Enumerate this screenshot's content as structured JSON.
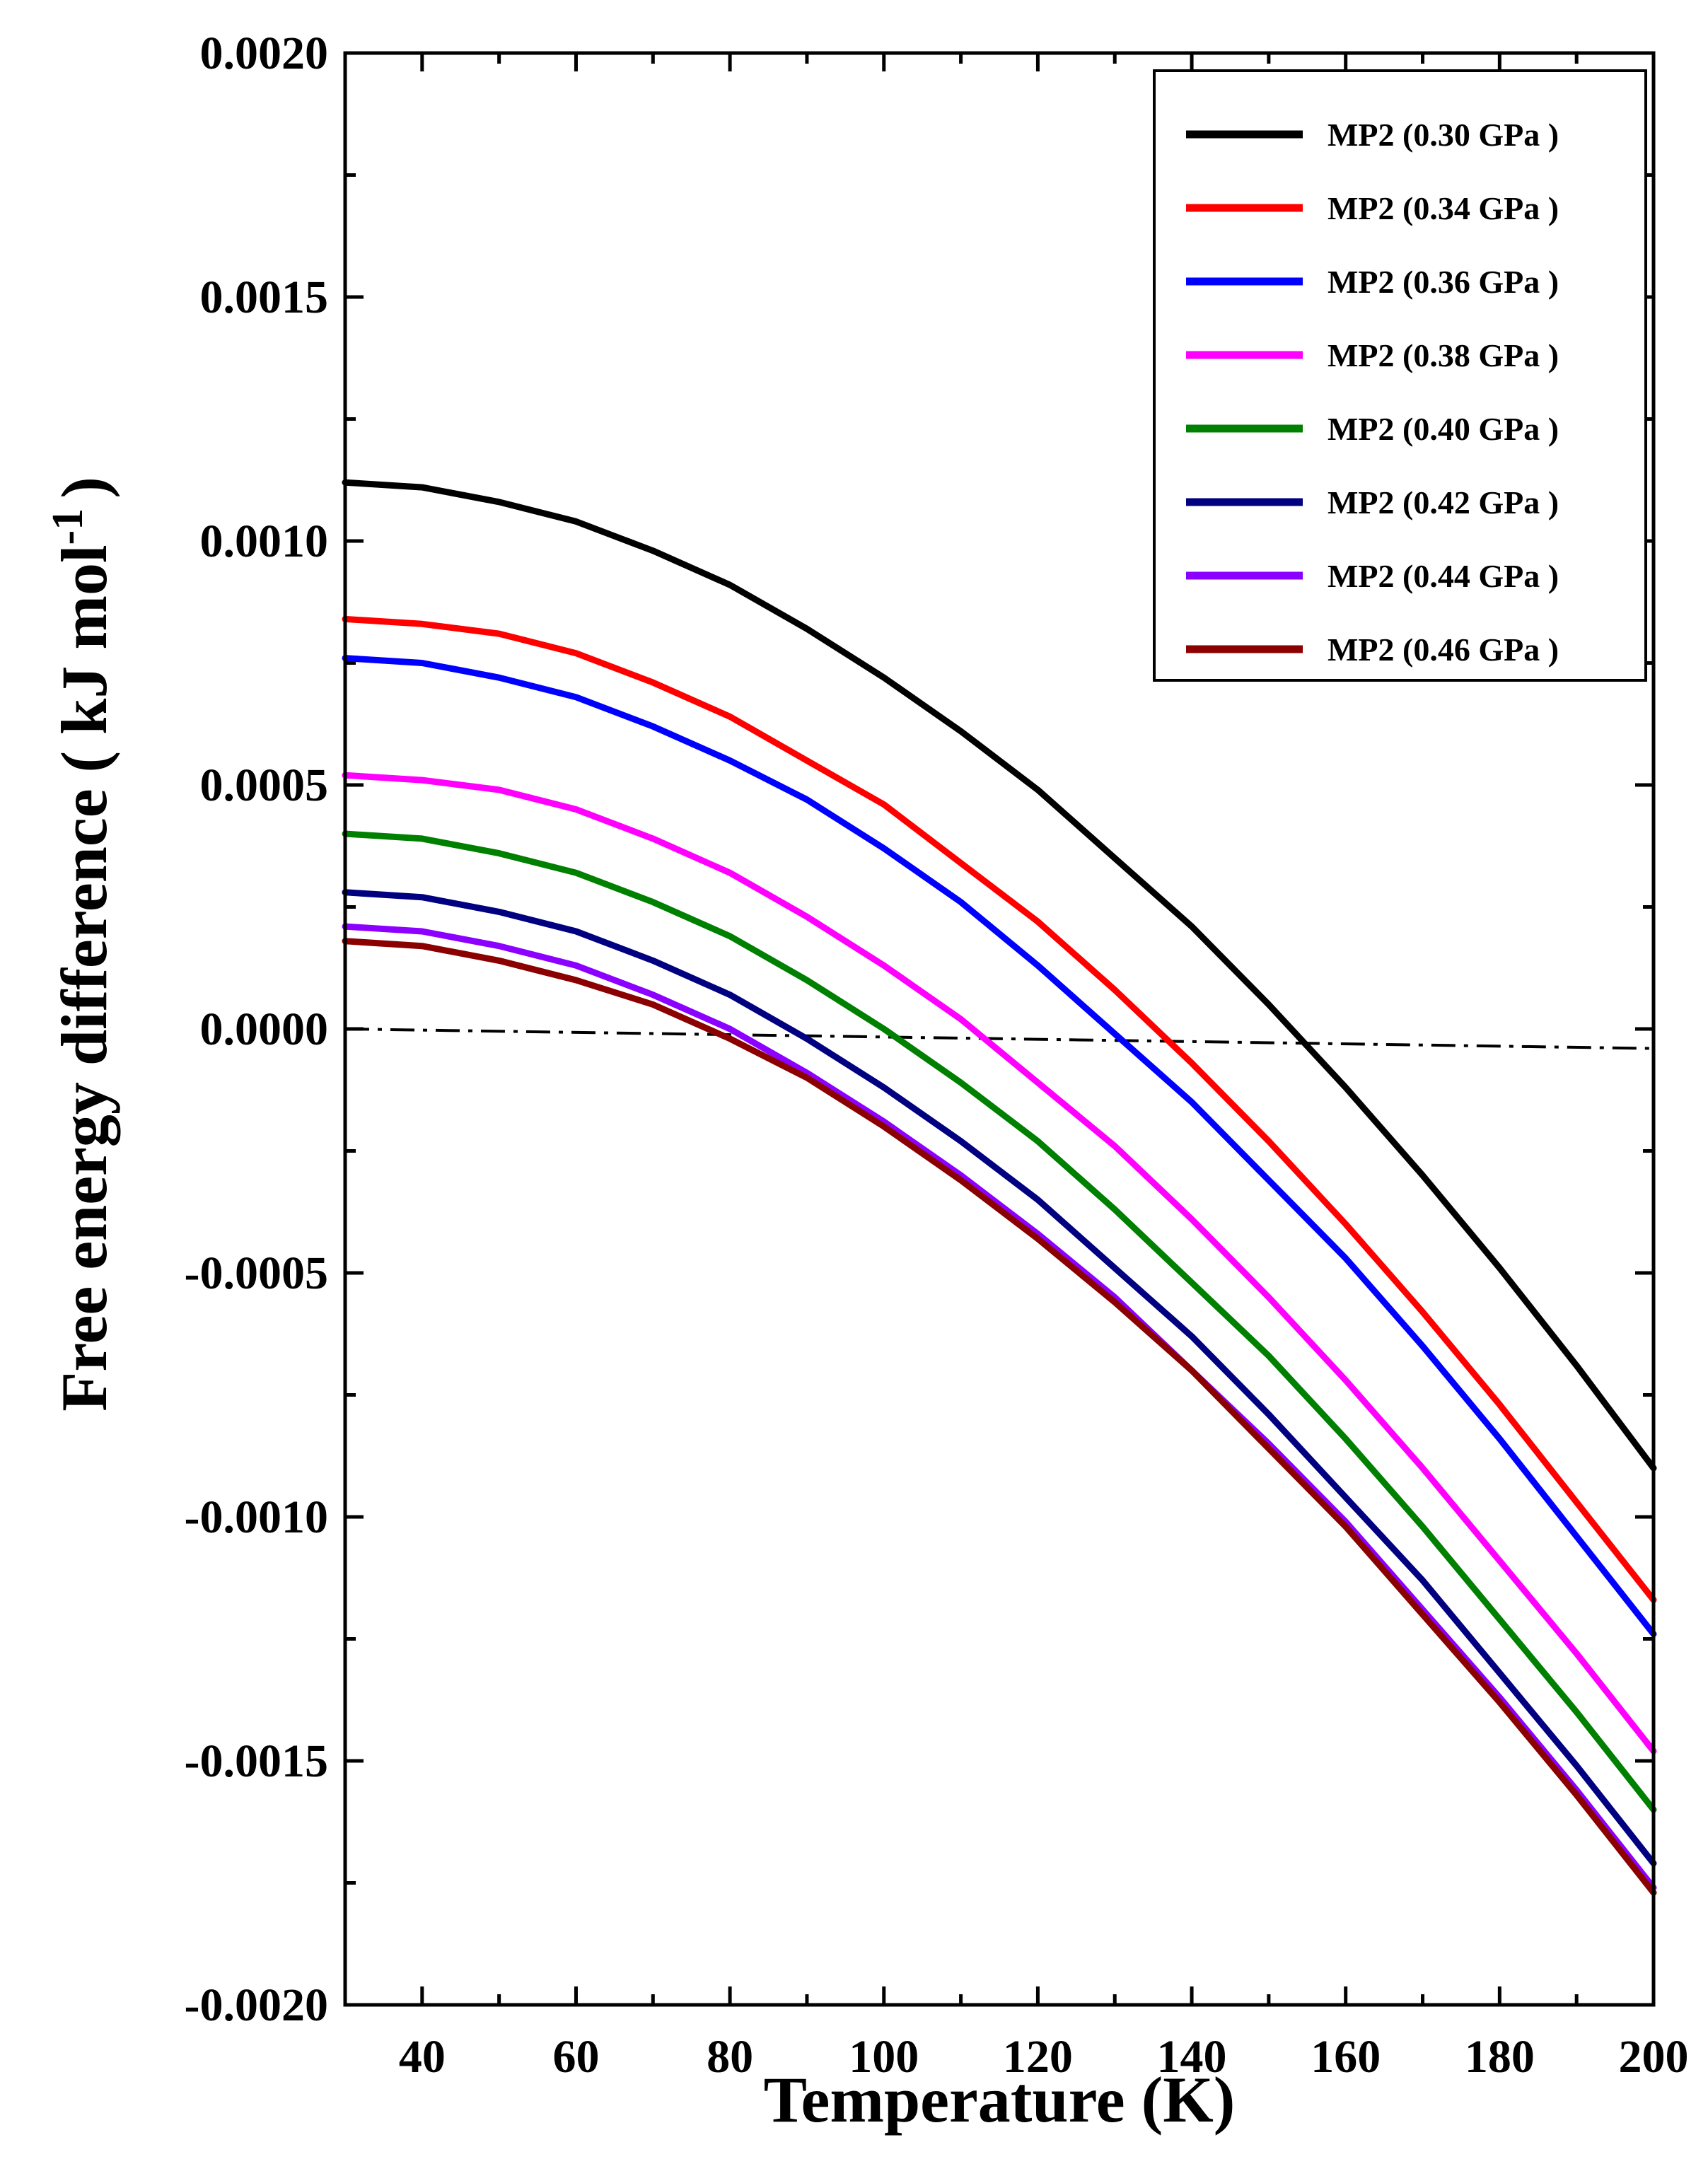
{
  "chart_data": {
    "type": "line",
    "title": "",
    "xlabel": "Temperature (K)",
    "ylabel": "Free energy difference ( kJ mol",
    "ylabel_superscript": "-1",
    "ylabel_suffix": ")",
    "xlim": [
      30,
      200
    ],
    "ylim": [
      -0.002,
      0.002
    ],
    "x_ticks": [
      40,
      60,
      80,
      100,
      120,
      140,
      160,
      180,
      200
    ],
    "x_tick_labels": [
      "40",
      "60",
      "80",
      "100",
      "120",
      "140",
      "160",
      "180",
      "200"
    ],
    "y_ticks": [
      -0.002,
      -0.0015,
      -0.001,
      -0.0005,
      0,
      0.0005,
      0.001,
      0.0015,
      0.002
    ],
    "y_tick_labels": [
      "-0.0020",
      "-0.0015",
      "-0.0010",
      "-0.0005",
      "0.0000",
      "0.0005",
      "0.0010",
      "0.0015",
      "0.0020"
    ],
    "legend_position": "top-right",
    "x": [
      30,
      40,
      50,
      60,
      70,
      80,
      90,
      100,
      110,
      120,
      130,
      140,
      150,
      160,
      170,
      180,
      190,
      200
    ],
    "series": [
      {
        "name": "MP2 (0.30 GPa )",
        "color": "#000000",
        "values": [
          0.00112,
          0.00111,
          0.00108,
          0.00104,
          0.00098,
          0.00091,
          0.00082,
          0.00072,
          0.00061,
          0.00049,
          0.00035,
          0.00021,
          5e-05,
          -0.00012,
          -0.0003,
          -0.00049,
          -0.00069,
          -0.0009
        ]
      },
      {
        "name": "MP2 (0.34 GPa )",
        "color": "#ff0000",
        "values": [
          0.00084,
          0.00083,
          0.00081,
          0.00077,
          0.00071,
          0.00064,
          0.00055,
          0.00046,
          0.00034,
          0.00022,
          8e-05,
          -7e-05,
          -0.00023,
          -0.0004,
          -0.00058,
          -0.00077,
          -0.00097,
          -0.00117
        ]
      },
      {
        "name": "MP2 (0.36 GPa )",
        "color": "#0000ff",
        "values": [
          0.00076,
          0.00075,
          0.00072,
          0.00068,
          0.00062,
          0.00055,
          0.00047,
          0.00037,
          0.00026,
          0.00013,
          -1e-05,
          -0.00015,
          -0.00031,
          -0.00047,
          -0.00065,
          -0.00084,
          -0.00104,
          -0.00124
        ]
      },
      {
        "name": "MP2 (0.38 GPa )",
        "color": "#ff00ff",
        "values": [
          0.00052,
          0.00051,
          0.00049,
          0.00045,
          0.00039,
          0.00032,
          0.00023,
          0.00013,
          2e-05,
          -0.00011,
          -0.00024,
          -0.00039,
          -0.00055,
          -0.00072,
          -0.0009,
          -0.00109,
          -0.00128,
          -0.00148
        ]
      },
      {
        "name": "MP2 (0.40 GPa )",
        "color": "#008000",
        "values": [
          0.0004,
          0.00039,
          0.00036,
          0.00032,
          0.00026,
          0.00019,
          0.0001,
          0.0,
          -0.00011,
          -0.00023,
          -0.00037,
          -0.00052,
          -0.00067,
          -0.00084,
          -0.00102,
          -0.00121,
          -0.0014,
          -0.0016
        ]
      },
      {
        "name": "MP2 (0.42 GPa )",
        "color": "#000080",
        "values": [
          0.00028,
          0.00027,
          0.00024,
          0.0002,
          0.00014,
          7e-05,
          -2e-05,
          -0.00012,
          -0.00023,
          -0.00035,
          -0.00049,
          -0.00063,
          -0.00079,
          -0.00096,
          -0.00113,
          -0.00132,
          -0.00151,
          -0.00171
        ]
      },
      {
        "name": "MP2 (0.44 GPa )",
        "color": "#8b00ff",
        "values": [
          0.00021,
          0.0002,
          0.00017,
          0.00013,
          7e-05,
          0.0,
          -9e-05,
          -0.00019,
          -0.0003,
          -0.00042,
          -0.00055,
          -0.0007,
          -0.00085,
          -0.00101,
          -0.00119,
          -0.00137,
          -0.00156,
          -0.00176
        ]
      },
      {
        "name": "MP2 (0.46 GPa )",
        "color": "#8b0000",
        "values": [
          0.00018,
          0.00017,
          0.00014,
          0.0001,
          5e-05,
          -2e-05,
          -0.0001,
          -0.0002,
          -0.00031,
          -0.00043,
          -0.00056,
          -0.0007,
          -0.00086,
          -0.00102,
          -0.0012,
          -0.00138,
          -0.00157,
          -0.00177
        ]
      }
    ],
    "reference_line": {
      "name": "dash-dot reference",
      "x": [
        30,
        200
      ],
      "values": [
        0.0,
        -4e-05
      ],
      "color": "#000000"
    }
  }
}
